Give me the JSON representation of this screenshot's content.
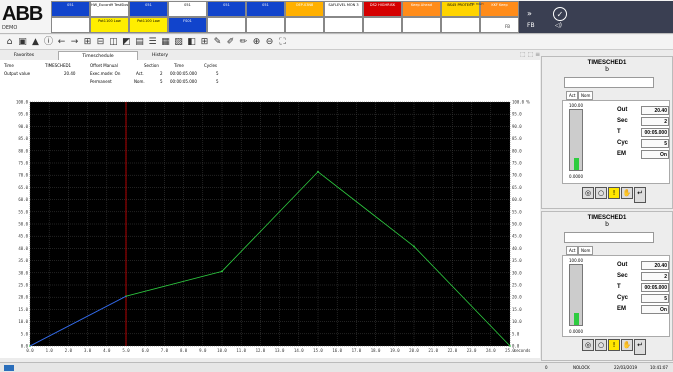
{
  "logo": {
    "text": "ABB",
    "sub": "DEMO"
  },
  "alarms": {
    "row1": [
      {
        "text": "051",
        "bg": "#1144cc",
        "fg": "#fff"
      },
      {
        "text": "HW_Eucord9 TestSlow",
        "bg": "#ffffff",
        "fg": "#000"
      },
      {
        "text": "051",
        "bg": "#1144cc",
        "fg": "#fff"
      },
      {
        "text": "051",
        "bg": "#ffffff",
        "fg": "#000"
      },
      {
        "text": "051",
        "bg": "#1144cc",
        "fg": "#fff"
      },
      {
        "text": "051",
        "bg": "#1144cc",
        "fg": "#fff"
      },
      {
        "text": "OEP-03N8",
        "bg": "#ffb000",
        "fg": "#fff"
      },
      {
        "text": "SAFLEVEL MON 3",
        "bg": "#ffffff",
        "fg": "#000"
      },
      {
        "text": "DS2 HIGHRISK",
        "bg": "#d40000",
        "fg": "#fff"
      },
      {
        "text": "Keep Ahead",
        "bg": "#ff8c1a",
        "fg": "#fff"
      },
      {
        "text": "BS45 PROTECT",
        "bg": "#ffd400",
        "fg": "#000"
      },
      {
        "text": "KKF Keep",
        "bg": "#ff8c1a",
        "fg": "#fff"
      }
    ],
    "row2": [
      {
        "text": "",
        "bg": "#ffffff",
        "fg": "#000"
      },
      {
        "text": "Pot1100 Low",
        "bg": "#ffee00",
        "fg": "#000"
      },
      {
        "text": "Pot1100 Low",
        "bg": "#ffee00",
        "fg": "#000"
      },
      {
        "text": "FS01",
        "bg": "#1144cc",
        "fg": "#fff"
      },
      {
        "text": "",
        "bg": "#ffffff",
        "fg": "#000"
      },
      {
        "text": "",
        "bg": "#ffffff",
        "fg": "#000"
      },
      {
        "text": "",
        "bg": "#ffffff",
        "fg": "#000"
      },
      {
        "text": "",
        "bg": "#ffffff",
        "fg": "#000"
      },
      {
        "text": "",
        "bg": "#ffffff",
        "fg": "#000"
      },
      {
        "text": "",
        "bg": "#ffffff",
        "fg": "#000"
      },
      {
        "text": "",
        "bg": "#ffffff",
        "fg": "#000"
      },
      {
        "text": "",
        "bg": "#ffffff",
        "fg": "#000"
      }
    ],
    "extra": {
      "cell_top": "PIC HIGH",
      "right_count": "FB"
    }
  },
  "nav": {
    "more": "»",
    "badge": "FB"
  },
  "toolbar": {
    "icons": [
      "home-icon",
      "overview-icon",
      "alarm-icon",
      "info-icon",
      "back-icon",
      "forward-icon",
      "trend-icon",
      "faceplate-icon",
      "display-icon",
      "graph-icon",
      "doc-icon",
      "list-icon",
      "table-icon",
      "report-icon",
      "layout-icon",
      "grid-icon",
      "pen-icon",
      "pen2-icon",
      "pen3-icon",
      "zoom-in-icon",
      "zoom-out-icon",
      "fullscreen-icon"
    ]
  },
  "tabs": {
    "favorites": "Favorites",
    "timeschedule": "Timeschedule",
    "history": "History"
  },
  "info": {
    "time_label": "Time",
    "time_value": "TIMESCHED1",
    "output_label": "Output value",
    "output_value": "20.40",
    "offset_label": "Offset Manual",
    "execmode_label": "Exec.mode: On",
    "permanent_label": "Permanent",
    "section_header": "Section",
    "time_header": "Time",
    "cycles_header": "Cycles",
    "act_label": "Act.",
    "act_section": "2",
    "act_time": "00:00:05.000",
    "act_cycles": "5",
    "nom_label": "Nom.",
    "nom_section": "5",
    "nom_time": "00:00:05.000",
    "nom_cycles": "5"
  },
  "chart_data": {
    "type": "line",
    "x": [
      0,
      5,
      10,
      15,
      20,
      25
    ],
    "series": [
      {
        "values": [
          0,
          20.4,
          30.6,
          71.4,
          40.8,
          0
        ],
        "color": "#2ecc40"
      }
    ],
    "cursor_x": 5,
    "xlim": [
      0,
      25
    ],
    "ylim": [
      0,
      100
    ],
    "yticks": [
      0,
      5,
      10,
      15,
      20,
      25,
      30,
      35,
      40,
      45,
      50,
      55,
      60,
      65,
      70,
      75,
      80,
      85,
      90,
      95,
      100
    ],
    "ytick_labels": [
      "0.0",
      "5.0",
      "10.0",
      "15.0",
      "20.0",
      "25.0",
      "30.0",
      "35.0",
      "40.0",
      "45.0",
      "50.0",
      "55.0",
      "60.0",
      "65.0",
      "70.0",
      "75.0",
      "80.0",
      "85.0",
      "90.0",
      "95.0",
      "100.0"
    ],
    "xtick_labels": [
      "0.0",
      "1.0",
      "2.0",
      "3.0",
      "4.0",
      "5.0",
      "6.0",
      "7.0",
      "8.0",
      "9.0",
      "10.0",
      "11.0",
      "12.0",
      "13.0",
      "14.0",
      "15.0",
      "16.0",
      "17.0",
      "18.0",
      "19.0",
      "20.0",
      "21.0",
      "22.0",
      "23.0",
      "24.0",
      "25.0"
    ],
    "xunit": "seconds",
    "yunit": "%",
    "grid": true
  },
  "faceplates": [
    {
      "title": "TIMESCHED1",
      "sub": "b",
      "tab_act": "Act",
      "tab_nom": "Nom",
      "range_top": "100.00",
      "range_bot": "0.0000",
      "rows": [
        {
          "label": "Out",
          "value": "20.40"
        },
        {
          "label": "Sec",
          "value": "2"
        },
        {
          "label": "T",
          "value": "00:05.000"
        },
        {
          "label": "Cyc",
          "value": "5"
        },
        {
          "label": "EM",
          "value": "On"
        }
      ],
      "level": 0.2
    },
    {
      "title": "TIMESCHED1",
      "sub": "b",
      "tab_act": "Act",
      "tab_nom": "Nom",
      "range_top": "100.00",
      "range_bot": "0.0000",
      "rows": [
        {
          "label": "Out",
          "value": "20.40"
        },
        {
          "label": "Sec",
          "value": "2"
        },
        {
          "label": "T",
          "value": "00:05.000"
        },
        {
          "label": "Cyc",
          "value": "5"
        },
        {
          "label": "EM",
          "value": "On"
        }
      ],
      "level": 0.2
    }
  ],
  "status": {
    "count": "0",
    "user": "NOLOCK",
    "date": "22/03/2019",
    "time": "10:41:07"
  }
}
